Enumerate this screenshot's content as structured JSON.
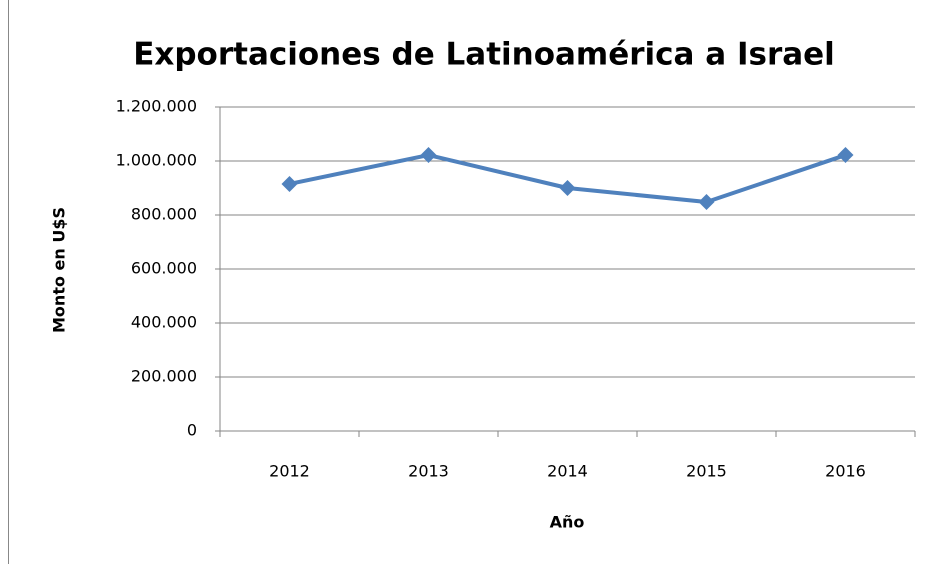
{
  "chart_data": {
    "type": "line",
    "title": "Exportaciones de Latinoamérica a Israel",
    "x_label": "Año",
    "y_label": "Monto en U$S",
    "categories": [
      "2012",
      "2013",
      "2014",
      "2015",
      "2016"
    ],
    "series": [
      {
        "name": "Exportaciones",
        "color": "#4f81bd",
        "values": [
          915000,
          1022000,
          900000,
          848000,
          1022000
        ]
      }
    ],
    "ylim": [
      0,
      1200000
    ],
    "yticks": [
      0,
      {
        "value": 200000,
        "label": "200.000"
      },
      {
        "value": 400000,
        "label": "400.000"
      },
      {
        "value": 600000,
        "label": "600.000"
      },
      {
        "value": 800000,
        "label": "800.000"
      },
      {
        "value": 1000000,
        "label": "1.000.000"
      },
      {
        "value": 1200000,
        "label": "1.200.000"
      }
    ],
    "grid": true,
    "legend": false
  }
}
